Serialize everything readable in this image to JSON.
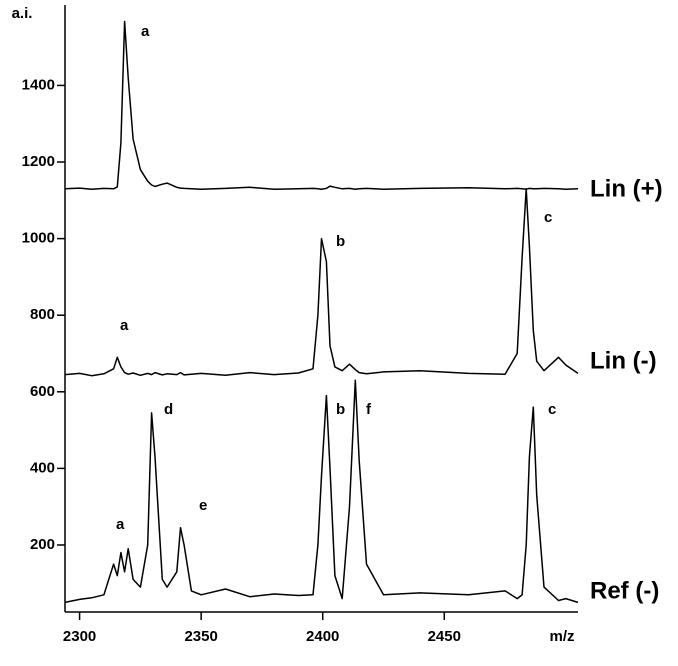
{
  "chart_data": {
    "type": "line",
    "ylabel": "a.i.",
    "xlabel": "m/z",
    "xlim": [
      2294,
      2505
    ],
    "xticks": [
      2300,
      2350,
      2400,
      2450
    ],
    "ylim": [
      25,
      1610
    ],
    "yticks": [
      200,
      400,
      600,
      800,
      1000,
      1200,
      1400
    ],
    "x": [
      2294,
      2300,
      2305,
      2310,
      2314,
      2315.5,
      2317,
      2318.5,
      2320,
      2322,
      2325,
      2328,
      2329.6,
      2331,
      2334,
      2336,
      2340,
      2341.5,
      2343,
      2346,
      2350,
      2360,
      2370,
      2380,
      2390,
      2396,
      2398,
      2399.5,
      2401.5,
      2403,
      2405,
      2408,
      2411,
      2413.4,
      2415,
      2418,
      2425,
      2440,
      2460,
      2475,
      2480,
      2482,
      2483.7,
      2485,
      2486.6,
      2488,
      2491,
      2497,
      2500,
      2505
    ],
    "series": [
      {
        "name": "Lin (+)",
        "color": "#000000",
        "values": [
          1130,
          1132,
          1129,
          1131,
          1130,
          1135,
          1250,
          1567,
          1420,
          1260,
          1180,
          1150,
          1140,
          1136,
          1142,
          1145,
          1134,
          1132,
          1131,
          1130,
          1129,
          1131,
          1134,
          1129,
          1130,
          1131,
          1130,
          1129,
          1131,
          1137,
          1134,
          1130,
          1131,
          1129,
          1130,
          1131,
          1129,
          1131,
          1133,
          1130,
          1131,
          1130,
          1129,
          1131,
          1130,
          1130,
          1131,
          1130,
          1129,
          1130
        ]
      },
      {
        "name": "Lin (-)",
        "color": "#000000",
        "values": [
          645,
          648,
          642,
          647,
          660,
          690,
          665,
          650,
          646,
          649,
          643,
          648,
          645,
          650,
          644,
          647,
          645,
          650,
          644,
          646,
          648,
          643,
          650,
          645,
          649,
          660,
          800,
          1000,
          940,
          720,
          665,
          655,
          672,
          658,
          650,
          647,
          652,
          655,
          648,
          646,
          700,
          950,
          1130,
          980,
          760,
          680,
          655,
          690,
          670,
          648
        ]
      },
      {
        "name": "Ref (-)",
        "color": "#000000",
        "values": [
          50,
          58,
          62,
          70,
          150,
          120,
          180,
          130,
          190,
          110,
          90,
          200,
          545,
          430,
          110,
          90,
          130,
          245,
          200,
          80,
          70,
          85,
          65,
          72,
          68,
          70,
          200,
          380,
          590,
          400,
          120,
          60,
          300,
          630,
          420,
          150,
          70,
          75,
          70,
          80,
          60,
          70,
          200,
          430,
          560,
          330,
          90,
          55,
          60,
          50
        ]
      }
    ],
    "annotations": [
      "a",
      "a",
      "b",
      "c",
      "a",
      "d",
      "e",
      "b",
      "f",
      "c"
    ]
  }
}
